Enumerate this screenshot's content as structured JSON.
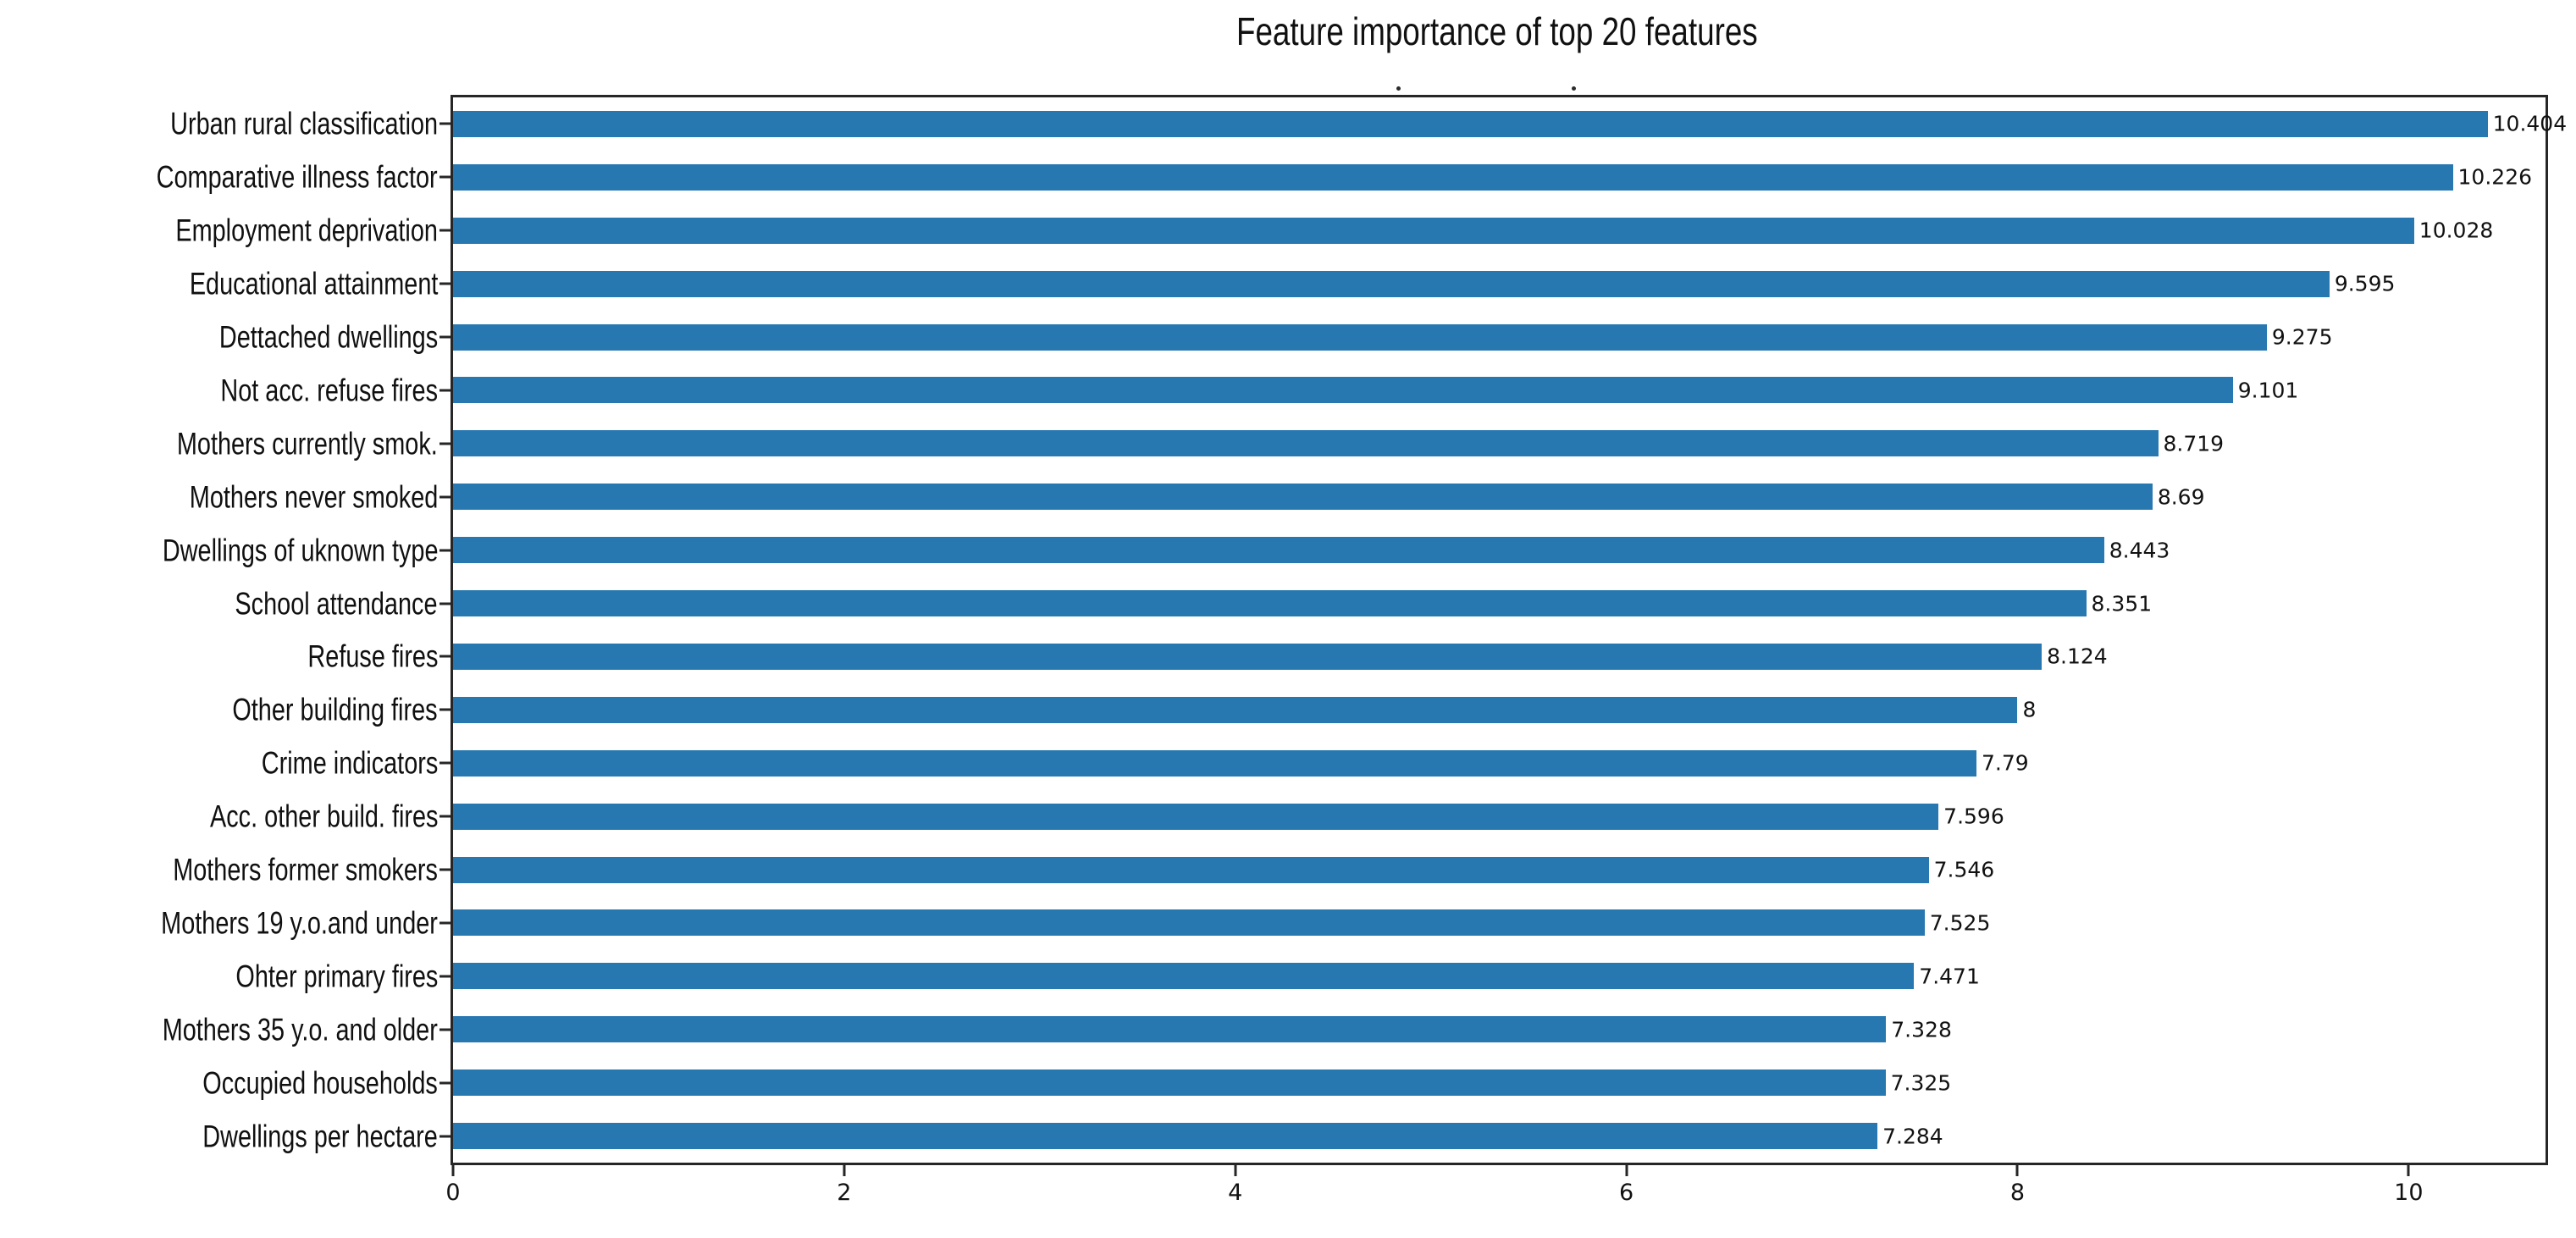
{
  "chart_data": {
    "type": "bar",
    "orientation": "horizontal",
    "title": "Feature importance of top 20 features",
    "categories": [
      "Urban rural classification",
      "Comparative illness factor",
      "Employment deprivation",
      "Educational attainment",
      "Dettached dwellings",
      "Not acc. refuse fires",
      "Mothers currently smok.",
      "Mothers never smoked",
      "Dwellings of uknown type",
      "School attendance",
      "Refuse fires",
      "Other building fires",
      "Crime indicators",
      "Acc. other build. fires",
      "Mothers former smokers",
      "Mothers 19 y.o.and under",
      "Ohter primary fires",
      "Mothers 35 y.o. and older",
      "Occupied households",
      "Dwellings per hectare"
    ],
    "values": [
      10.404,
      10.226,
      10.028,
      9.595,
      9.275,
      9.101,
      8.719,
      8.69,
      8.443,
      8.351,
      8.124,
      8,
      7.79,
      7.596,
      7.546,
      7.525,
      7.471,
      7.328,
      7.325,
      7.284
    ],
    "value_labels": [
      "10.404",
      "10.226",
      "10.028",
      "9.595",
      "9.275",
      "9.101",
      "8.719",
      "8.69",
      "8.443",
      "8.351",
      "8.124",
      "8",
      "7.79",
      "7.596",
      "7.546",
      "7.525",
      "7.471",
      "7.328",
      "7.325",
      "7.284"
    ],
    "xlabel": "",
    "ylabel": "",
    "xlim": [
      0,
      10.7
    ],
    "xticks": [
      0,
      2,
      4,
      6,
      8,
      10
    ],
    "xtick_labels": [
      "0",
      "2",
      "4",
      "6",
      "8",
      "10"
    ],
    "grid": false,
    "legend": null,
    "bar_color": "#2778b1",
    "frame_color": "#262626",
    "text_color": "#111111"
  }
}
